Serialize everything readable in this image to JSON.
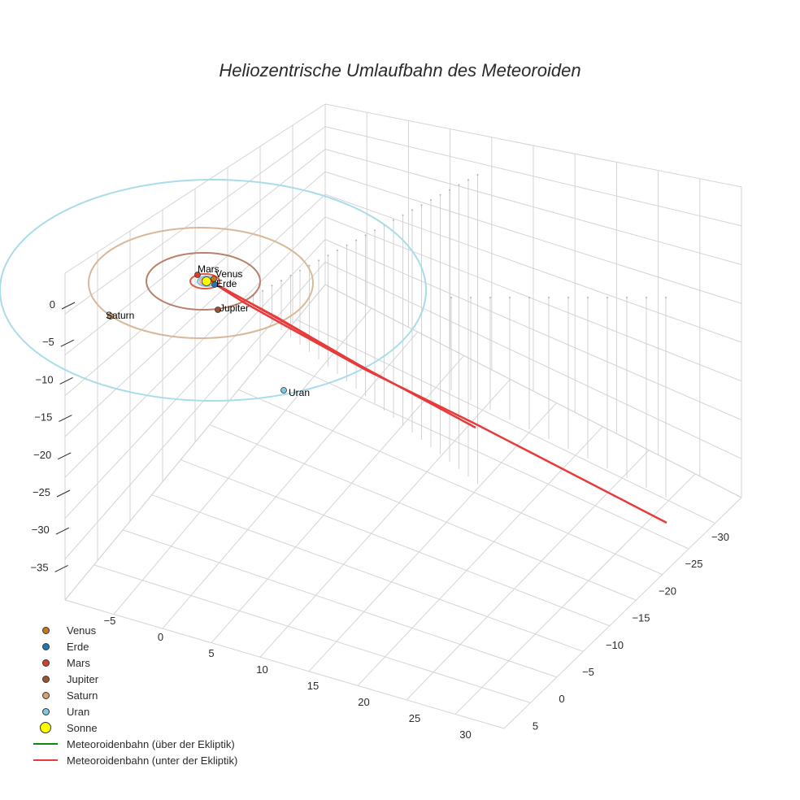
{
  "chart_data": {
    "type": "scatter3d",
    "title": "Heliozentrische Umlaufbahn des Meteoroiden",
    "z_ticks": [
      "0",
      "−5",
      "−10",
      "−15",
      "−20",
      "−25",
      "−30",
      "−35"
    ],
    "x_ticks": [
      "−5",
      "0",
      "5",
      "10",
      "15",
      "20",
      "25",
      "30"
    ],
    "y_ticks": [
      "−30",
      "−25",
      "−20",
      "−15",
      "−10",
      "−5",
      "0",
      "5"
    ],
    "planets": [
      {
        "name": "Venus",
        "label": "Venus",
        "color": "#c8781e"
      },
      {
        "name": "Erde",
        "label": "Erde",
        "color": "#1f77b4"
      },
      {
        "name": "Mars",
        "label": "Mars",
        "color": "#d6402a"
      },
      {
        "name": "Jupiter",
        "label": "Jupiter",
        "color": "#a0522d"
      },
      {
        "name": "Saturn",
        "label": "Saturn",
        "color": "#d9a070"
      },
      {
        "name": "Uran",
        "label": "Uran",
        "color": "#7ec8e3"
      }
    ],
    "orbit_colors": {
      "Venus": "#e8b07a",
      "Erde": "#8fbce6",
      "Mars": "#e05a40",
      "Jupiter": "#b88068",
      "Saturn": "#d8b898",
      "Uran": "#a8dce8"
    },
    "sun": {
      "name": "Sonne",
      "color": "#ffff00"
    },
    "meteoroid_above_color": "#0a8a0a",
    "meteoroid_below_color": "#e83a3a",
    "legend": [
      {
        "label": "Venus",
        "kind": "dot",
        "color": "#c8781e"
      },
      {
        "label": "Erde",
        "kind": "dot",
        "color": "#1f77b4"
      },
      {
        "label": "Mars",
        "kind": "dot",
        "color": "#d6402a"
      },
      {
        "label": "Jupiter",
        "kind": "dot",
        "color": "#a0522d"
      },
      {
        "label": "Saturn",
        "kind": "dot",
        "color": "#d9a070"
      },
      {
        "label": "Uran",
        "kind": "dot",
        "color": "#7ec8e3"
      },
      {
        "label": "Sonne",
        "kind": "bigdot",
        "color": "#ffff00"
      },
      {
        "label": "Meteoroidenbahn (über der Ekliptik)",
        "kind": "line",
        "color": "#0a8a0a"
      },
      {
        "label": "Meteoroidenbahn (unter der Ekliptik)",
        "kind": "line",
        "color": "#e83a3a"
      }
    ]
  }
}
